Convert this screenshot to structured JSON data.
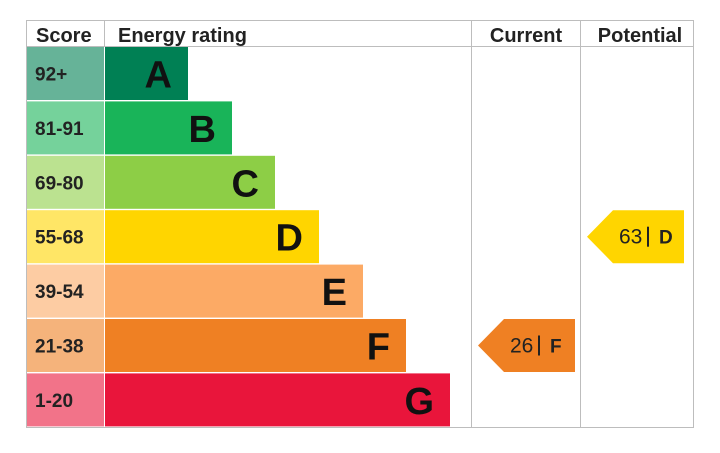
{
  "chart_data": {
    "type": "table",
    "headers": {
      "score": "Score",
      "rating": "Energy rating",
      "current": "Current",
      "potential": "Potential"
    },
    "bands": [
      {
        "score": "92+",
        "letter": "A",
        "color": "#008054",
        "score_bg": "#66b398"
      },
      {
        "score": "81-91",
        "letter": "B",
        "color": "#19b459",
        "score_bg": "#75d29b"
      },
      {
        "score": "69-80",
        "letter": "C",
        "color": "#8dce46",
        "score_bg": "#bbe290"
      },
      {
        "score": "55-68",
        "letter": "D",
        "color": "#ffd500",
        "score_bg": "#ffe666"
      },
      {
        "score": "39-54",
        "letter": "E",
        "color": "#fcaa65",
        "score_bg": "#fdcca3"
      },
      {
        "score": "21-38",
        "letter": "F",
        "color": "#ef8023",
        "score_bg": "#f5b37b"
      },
      {
        "score": "1-20",
        "letter": "G",
        "color": "#e9153b",
        "score_bg": "#f27389"
      }
    ],
    "current": {
      "value": 26,
      "value_text": "26",
      "letter": "F",
      "band": 5,
      "color": "#ef8023"
    },
    "potential": {
      "value": 63,
      "value_text": "63",
      "letter": "D",
      "band": 3,
      "color": "#ffd500"
    }
  }
}
